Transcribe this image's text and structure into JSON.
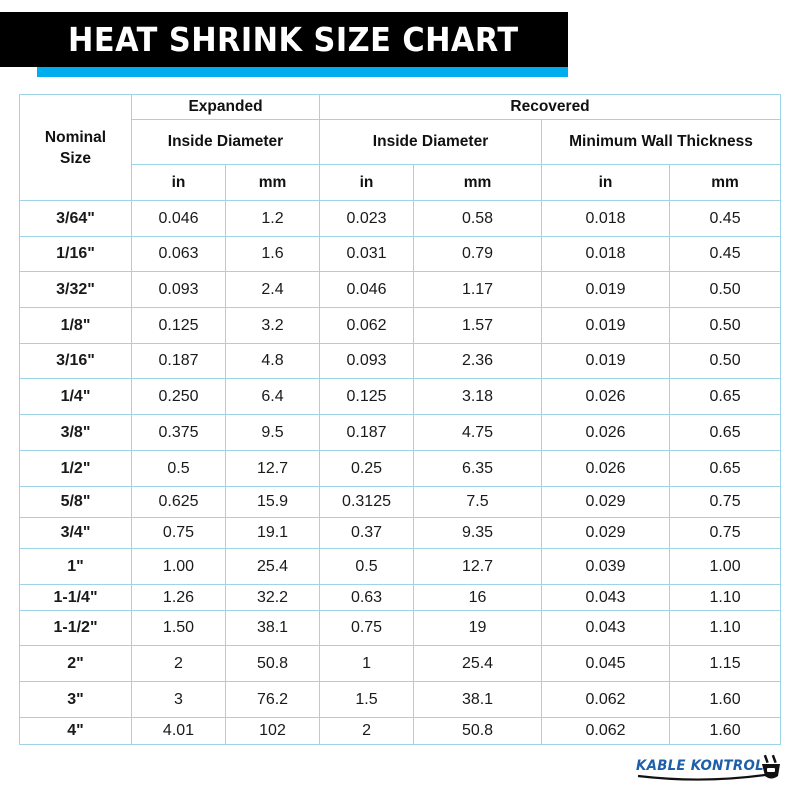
{
  "header": {
    "title": "HEAT SHRINK SIZE CHART",
    "banner_color": "#000000",
    "accent_color": "#00aeef"
  },
  "table": {
    "border_color": "#9fd3e6",
    "header_nominal": "Nominal Size",
    "group_expanded": "Expanded",
    "group_recovered": "Recovered",
    "sub_expanded_id": "Inside Diameter",
    "sub_recovered_id": "Inside Diameter",
    "sub_recovered_wall": "Minimum Wall Thickness",
    "unit_labels": [
      "in",
      "mm",
      "in",
      "mm",
      "in",
      "mm"
    ],
    "rows": [
      {
        "size": "3/64\"",
        "exp_in": "0.046",
        "exp_mm": "1.2",
        "rec_in": "0.023",
        "rec_mm": "0.58",
        "wall_in": "0.018",
        "wall_mm": "0.45"
      },
      {
        "size": "1/16\"",
        "exp_in": "0.063",
        "exp_mm": "1.6",
        "rec_in": "0.031",
        "rec_mm": "0.79",
        "wall_in": "0.018",
        "wall_mm": "0.45"
      },
      {
        "size": "3/32\"",
        "exp_in": "0.093",
        "exp_mm": "2.4",
        "rec_in": "0.046",
        "rec_mm": "1.17",
        "wall_in": "0.019",
        "wall_mm": "0.50"
      },
      {
        "size": "1/8\"",
        "exp_in": "0.125",
        "exp_mm": "3.2",
        "rec_in": "0.062",
        "rec_mm": "1.57",
        "wall_in": "0.019",
        "wall_mm": "0.50"
      },
      {
        "size": "3/16\"",
        "exp_in": "0.187",
        "exp_mm": "4.8",
        "rec_in": "0.093",
        "rec_mm": "2.36",
        "wall_in": "0.019",
        "wall_mm": "0.50"
      },
      {
        "size": "1/4\"",
        "exp_in": "0.250",
        "exp_mm": "6.4",
        "rec_in": "0.125",
        "rec_mm": "3.18",
        "wall_in": "0.026",
        "wall_mm": "0.65"
      },
      {
        "size": "3/8\"",
        "exp_in": "0.375",
        "exp_mm": "9.5",
        "rec_in": "0.187",
        "rec_mm": "4.75",
        "wall_in": "0.026",
        "wall_mm": "0.65"
      },
      {
        "size": "1/2\"",
        "exp_in": "0.5",
        "exp_mm": "12.7",
        "rec_in": "0.25",
        "rec_mm": "6.35",
        "wall_in": "0.026",
        "wall_mm": "0.65"
      },
      {
        "size": "5/8\"",
        "exp_in": "0.625",
        "exp_mm": "15.9",
        "rec_in": "0.3125",
        "rec_mm": "7.5",
        "wall_in": "0.029",
        "wall_mm": "0.75"
      },
      {
        "size": "3/4\"",
        "exp_in": "0.75",
        "exp_mm": "19.1",
        "rec_in": "0.37",
        "rec_mm": "9.35",
        "wall_in": "0.029",
        "wall_mm": "0.75"
      },
      {
        "size": "1\"",
        "exp_in": "1.00",
        "exp_mm": "25.4",
        "rec_in": "0.5",
        "rec_mm": "12.7",
        "wall_in": "0.039",
        "wall_mm": "1.00"
      },
      {
        "size": "1-1/4\"",
        "exp_in": "1.26",
        "exp_mm": "32.2",
        "rec_in": "0.63",
        "rec_mm": "16",
        "wall_in": "0.043",
        "wall_mm": "1.10"
      },
      {
        "size": "1-1/2\"",
        "exp_in": "1.50",
        "exp_mm": "38.1",
        "rec_in": "0.75",
        "rec_mm": "19",
        "wall_in": "0.043",
        "wall_mm": "1.10"
      },
      {
        "size": "2\"",
        "exp_in": "2",
        "exp_mm": "50.8",
        "rec_in": "1",
        "rec_mm": "25.4",
        "wall_in": "0.045",
        "wall_mm": "1.15"
      },
      {
        "size": "3\"",
        "exp_in": "3",
        "exp_mm": "76.2",
        "rec_in": "1.5",
        "rec_mm": "38.1",
        "wall_in": "0.062",
        "wall_mm": "1.60"
      },
      {
        "size": "4\"",
        "exp_in": "4.01",
        "exp_mm": "102",
        "rec_in": "2",
        "rec_mm": "50.8",
        "wall_in": "0.062",
        "wall_mm": "1.60"
      }
    ]
  },
  "logo": {
    "text": "KABLE KONTROL",
    "icon": "plug-icon",
    "color": "#1e5fa8"
  },
  "chart_data": {
    "type": "table",
    "title": "HEAT SHRINK SIZE CHART",
    "columns": [
      "Nominal Size",
      "Expanded Inside Diameter (in)",
      "Expanded Inside Diameter (mm)",
      "Recovered Inside Diameter (in)",
      "Recovered Inside Diameter (mm)",
      "Recovered Minimum Wall Thickness (in)",
      "Recovered Minimum Wall Thickness (mm)"
    ],
    "rows": [
      [
        "3/64\"",
        0.046,
        1.2,
        0.023,
        0.58,
        0.018,
        0.45
      ],
      [
        "1/16\"",
        0.063,
        1.6,
        0.031,
        0.79,
        0.018,
        0.45
      ],
      [
        "3/32\"",
        0.093,
        2.4,
        0.046,
        1.17,
        0.019,
        0.5
      ],
      [
        "1/8\"",
        0.125,
        3.2,
        0.062,
        1.57,
        0.019,
        0.5
      ],
      [
        "3/16\"",
        0.187,
        4.8,
        0.093,
        2.36,
        0.019,
        0.5
      ],
      [
        "1/4\"",
        0.25,
        6.4,
        0.125,
        3.18,
        0.026,
        0.65
      ],
      [
        "3/8\"",
        0.375,
        9.5,
        0.187,
        4.75,
        0.026,
        0.65
      ],
      [
        "1/2\"",
        0.5,
        12.7,
        0.25,
        6.35,
        0.026,
        0.65
      ],
      [
        "5/8\"",
        0.625,
        15.9,
        0.3125,
        7.5,
        0.029,
        0.75
      ],
      [
        "3/4\"",
        0.75,
        19.1,
        0.37,
        9.35,
        0.029,
        0.75
      ],
      [
        "1\"",
        1.0,
        25.4,
        0.5,
        12.7,
        0.039,
        1.0
      ],
      [
        "1-1/4\"",
        1.26,
        32.2,
        0.63,
        16,
        0.043,
        1.1
      ],
      [
        "1-1/2\"",
        1.5,
        38.1,
        0.75,
        19,
        0.043,
        1.1
      ],
      [
        "2\"",
        2,
        50.8,
        1,
        25.4,
        0.045,
        1.15
      ],
      [
        "3\"",
        3,
        76.2,
        1.5,
        38.1,
        0.062,
        1.6
      ],
      [
        "4\"",
        4.01,
        102,
        2,
        50.8,
        0.062,
        1.6
      ]
    ]
  }
}
